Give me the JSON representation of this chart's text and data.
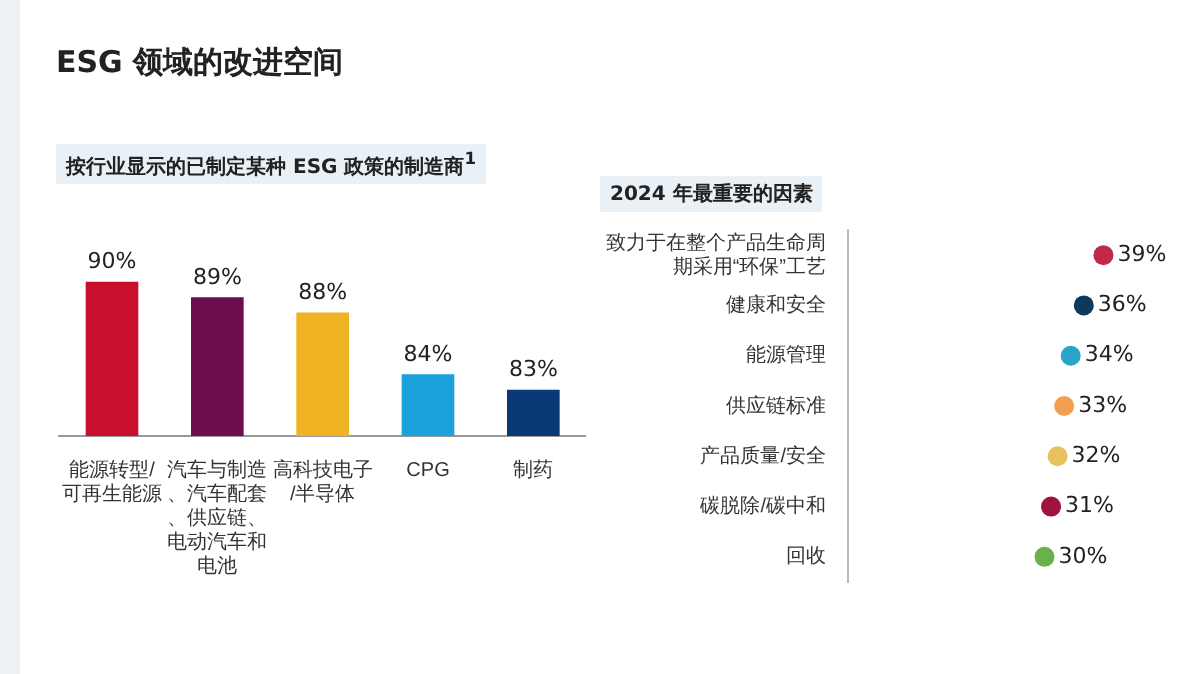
{
  "chart_data": [
    {
      "type": "bar",
      "title": "ESG 领域的改进空间",
      "subtitle": "按行业显示的已制定某种 ESG 政策的制造商$^{1}$",
      "categories": [
        "能源转型/可再生能源",
        "汽车与制造、汽车配套、供应链、电动汽车和电池",
        "高科技电子/半导体",
        "CPG",
        "制药"
      ],
      "values": [
        90,
        89,
        88,
        84,
        83
      ],
      "colors": [
        "#c8102e",
        "#6d0e4f",
        "#f0b323",
        "#1ba1dc",
        "#0a3a75"
      ],
      "value_labels": [
        "90%",
        "89%",
        "88%",
        "84%",
        "83%"
      ],
      "grid": false,
      "legend": false
    },
    {
      "type": "lollipop",
      "orientation": "horizontal",
      "title": "2024 年最重要的因素",
      "categories": [
        "致力于在整个产品生命周期采用“环保”工艺",
        "健康和安全",
        "能源管理",
        "供应链标准",
        "产品质量/安全",
        "碳脱除/碳中和",
        "回收"
      ],
      "values": [
        39,
        36,
        34,
        33,
        32,
        31,
        30
      ],
      "colors": [
        "#c0294a",
        "#0d3a5c",
        "#2aa4c8",
        "#f0a050",
        "#e8c060",
        "#a0143c",
        "#6ab04c"
      ],
      "value_labels": [
        "39%",
        "36%",
        "34%",
        "33%",
        "32%",
        "31%",
        "30%"
      ],
      "grid": false,
      "legend": false
    }
  ]
}
